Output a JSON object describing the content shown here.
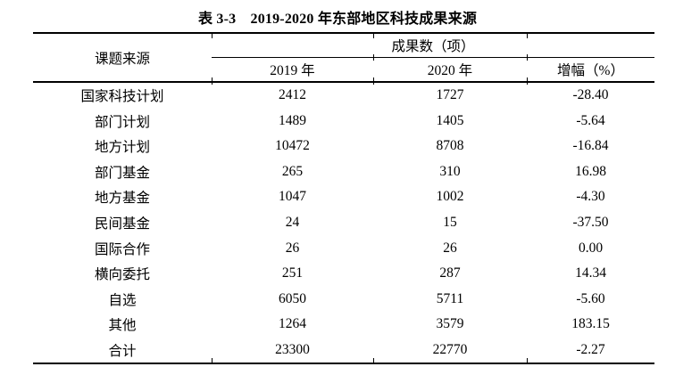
{
  "title": "表 3-3　2019-2020 年东部地区科技成果来源",
  "table": {
    "col1_header": "课题来源",
    "span_header": "成果数（项）",
    "sub_headers": [
      "2019 年",
      "2020 年",
      "增幅（%）"
    ],
    "rows": [
      {
        "label": "国家科技计划",
        "y2019": "2412",
        "y2020": "1727",
        "growth": "-28.40"
      },
      {
        "label": "部门计划",
        "y2019": "1489",
        "y2020": "1405",
        "growth": "-5.64"
      },
      {
        "label": "地方计划",
        "y2019": "10472",
        "y2020": "8708",
        "growth": "-16.84"
      },
      {
        "label": "部门基金",
        "y2019": "265",
        "y2020": "310",
        "growth": "16.98"
      },
      {
        "label": "地方基金",
        "y2019": "1047",
        "y2020": "1002",
        "growth": "-4.30"
      },
      {
        "label": "民间基金",
        "y2019": "24",
        "y2020": "15",
        "growth": "-37.50"
      },
      {
        "label": "国际合作",
        "y2019": "26",
        "y2020": "26",
        "growth": "0.00"
      },
      {
        "label": "横向委托",
        "y2019": "251",
        "y2020": "287",
        "growth": "14.34"
      },
      {
        "label": "自选",
        "y2019": "6050",
        "y2020": "5711",
        "growth": "-5.60"
      },
      {
        "label": "其他",
        "y2019": "1264",
        "y2020": "3579",
        "growth": "183.15"
      },
      {
        "label": "合计",
        "y2019": "23300",
        "y2020": "22770",
        "growth": "-2.27"
      }
    ]
  },
  "colors": {
    "text": "#000000",
    "rule": "#000000",
    "background": "#ffffff"
  }
}
